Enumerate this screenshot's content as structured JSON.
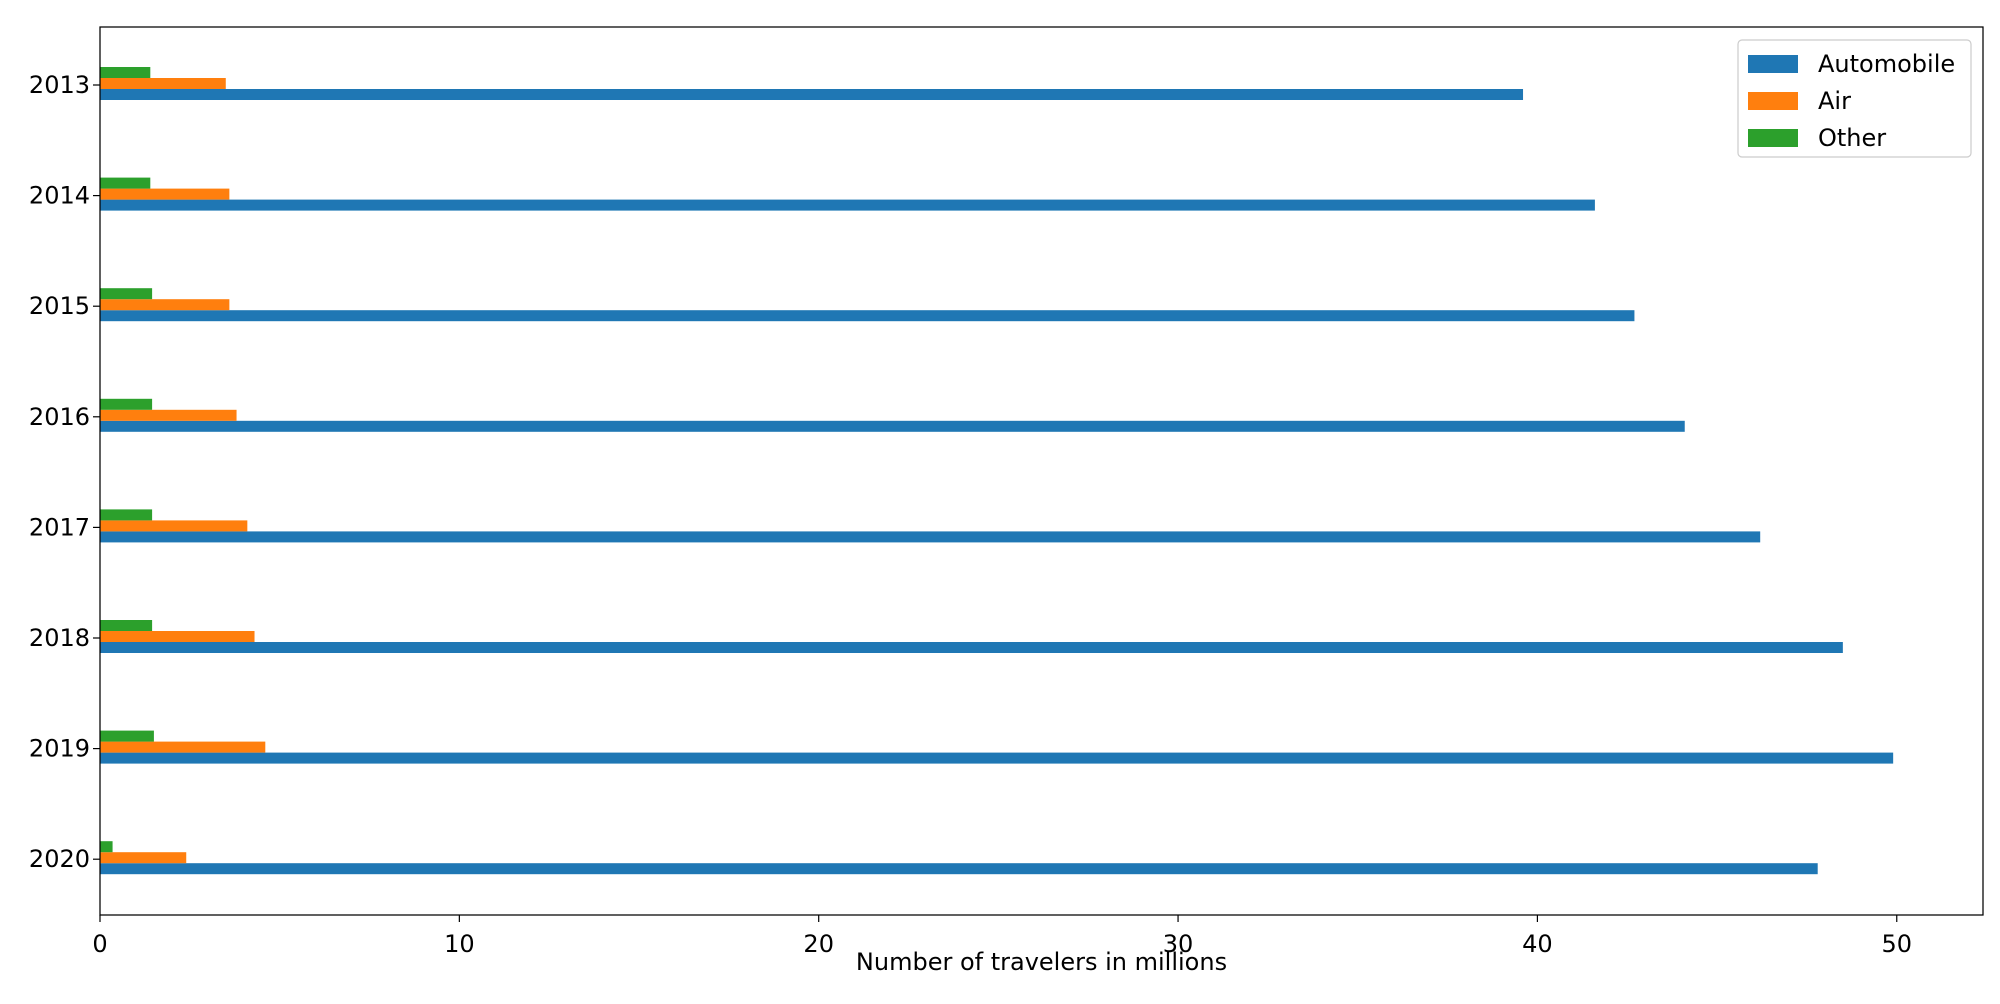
{
  "chart_data": {
    "type": "bar",
    "orientation": "horizontal",
    "categories": [
      "2013",
      "2014",
      "2015",
      "2016",
      "2017",
      "2018",
      "2019",
      "2020"
    ],
    "series": [
      {
        "name": "Automobile",
        "color": "#1f77b4",
        "values": [
          39.6,
          41.6,
          42.7,
          44.1,
          46.2,
          48.5,
          49.9,
          47.8
        ]
      },
      {
        "name": "Air",
        "color": "#ff7f0e",
        "values": [
          3.5,
          3.6,
          3.6,
          3.8,
          4.1,
          4.3,
          4.6,
          2.4
        ]
      },
      {
        "name": "Other",
        "color": "#2ca02c",
        "values": [
          1.4,
          1.4,
          1.45,
          1.45,
          1.45,
          1.45,
          1.5,
          0.35
        ]
      }
    ],
    "xlabel": "Number of travelers in millions",
    "ylabel": "",
    "title": "",
    "xlim": [
      0,
      52.4
    ],
    "xticks": [
      "0",
      "10",
      "20",
      "30",
      "40",
      "50"
    ],
    "grid": false,
    "legend_position": "top-right"
  }
}
